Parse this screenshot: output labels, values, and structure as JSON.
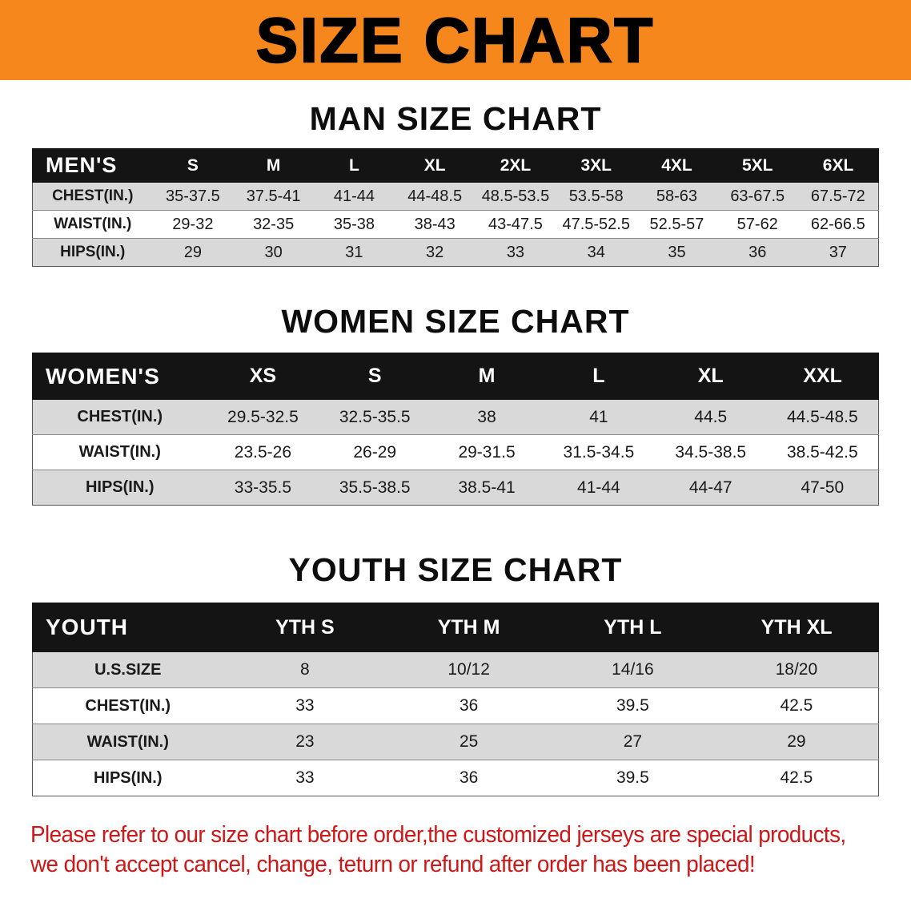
{
  "colors": {
    "banner_bg": "#f6871c",
    "table_header_bg": "#141414",
    "row_stripe": "#d9d9d9",
    "disclaimer_red": "#cf1717"
  },
  "banner": {
    "title": "SIZE CHART"
  },
  "sections": [
    {
      "id": "men",
      "heading": "MAN SIZE CHART",
      "table": {
        "header": [
          "MEN'S",
          "S",
          "M",
          "L",
          "XL",
          "2XL",
          "3XL",
          "4XL",
          "5XL",
          "6XL"
        ],
        "rows": [
          [
            "CHEST(IN.)",
            "35-37.5",
            "37.5-41",
            "41-44",
            "44-48.5",
            "48.5-53.5",
            "53.5-58",
            "58-63",
            "63-67.5",
            "67.5-72"
          ],
          [
            "WAIST(IN.)",
            "29-32",
            "32-35",
            "35-38",
            "38-43",
            "43-47.5",
            "47.5-52.5",
            "52.5-57",
            "57-62",
            "62-66.5"
          ],
          [
            "HIPS(IN.)",
            "29",
            "30",
            "31",
            "32",
            "33",
            "34",
            "35",
            "36",
            "37"
          ]
        ]
      }
    },
    {
      "id": "women",
      "heading": "WOMEN SIZE CHART",
      "table": {
        "header": [
          "WOMEN'S",
          "XS",
          "S",
          "M",
          "L",
          "XL",
          "XXL"
        ],
        "rows": [
          [
            "CHEST(IN.)",
            "29.5-32.5",
            "32.5-35.5",
            "38",
            "41",
            "44.5",
            "44.5-48.5"
          ],
          [
            "WAIST(IN.)",
            "23.5-26",
            "26-29",
            "29-31.5",
            "31.5-34.5",
            "34.5-38.5",
            "38.5-42.5"
          ],
          [
            "HIPS(IN.)",
            "33-35.5",
            "35.5-38.5",
            "38.5-41",
            "41-44",
            "44-47",
            "47-50"
          ]
        ]
      }
    },
    {
      "id": "youth",
      "heading": "YOUTH SIZE CHART",
      "table": {
        "header": [
          "YOUTH",
          "YTH S",
          "YTH M",
          "YTH L",
          "YTH XL"
        ],
        "rows": [
          [
            "U.S.SIZE",
            "8",
            "10/12",
            "14/16",
            "18/20"
          ],
          [
            "CHEST(IN.)",
            "33",
            "36",
            "39.5",
            "42.5"
          ],
          [
            "WAIST(IN.)",
            "23",
            "25",
            "27",
            "29"
          ],
          [
            "HIPS(IN.)",
            "33",
            "36",
            "39.5",
            "42.5"
          ]
        ]
      }
    }
  ],
  "disclaimer": {
    "line1": "Please refer to our size chart before order,the customized jerseys are special products,",
    "line2": "we don't accept cancel, change, teturn or refund after order has been placed!"
  }
}
